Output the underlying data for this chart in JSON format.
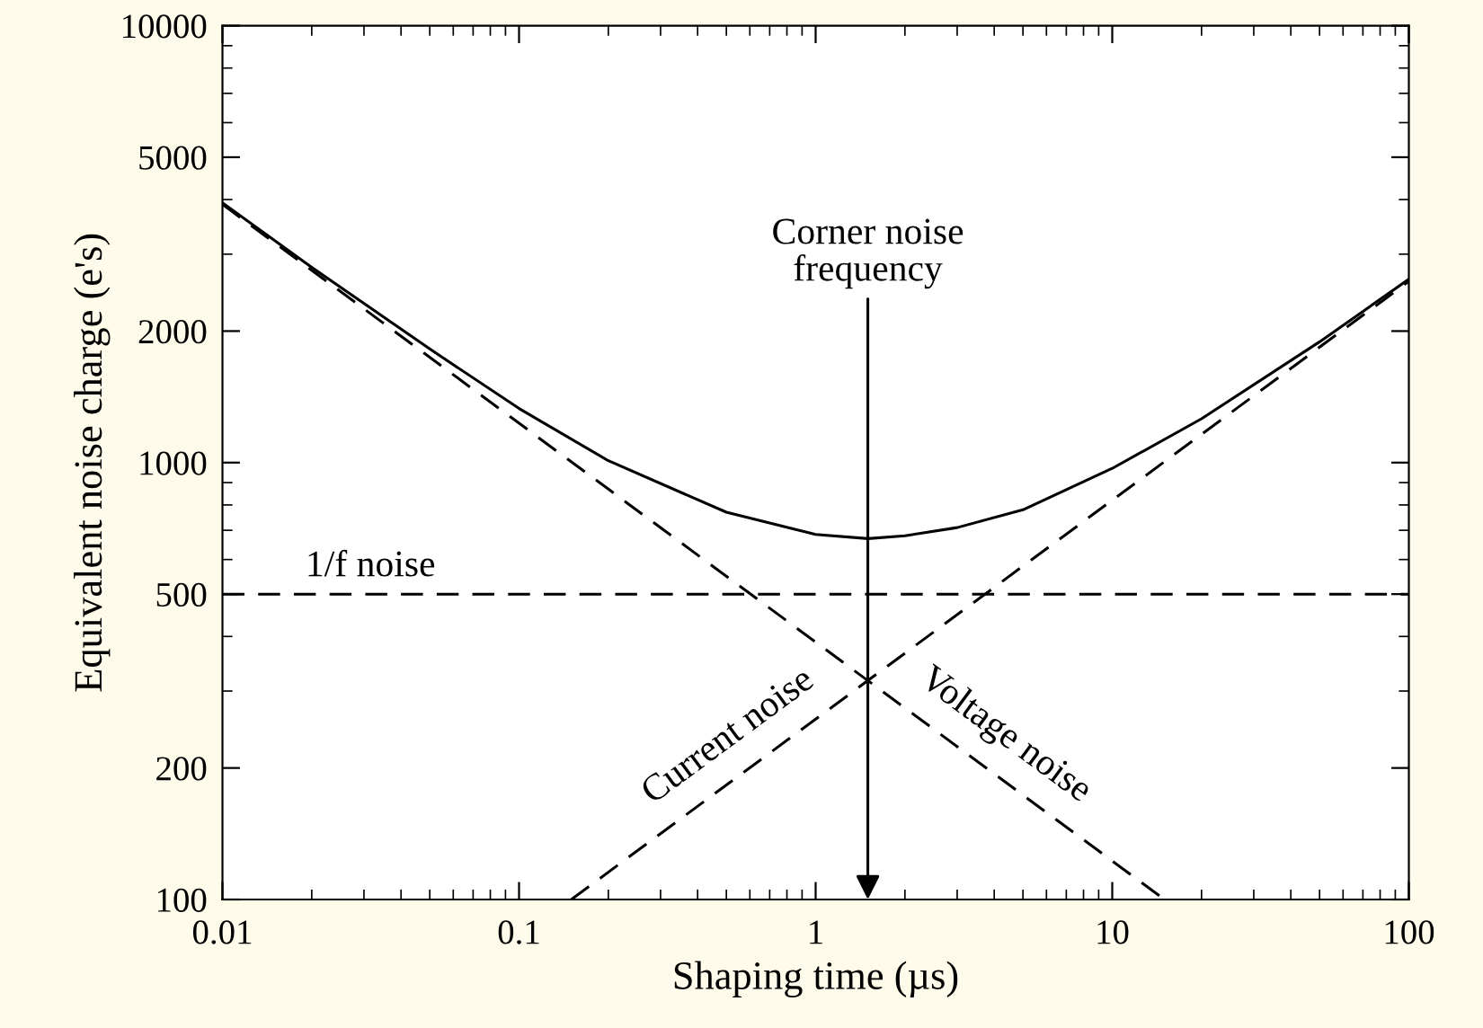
{
  "chart_data": {
    "type": "line",
    "xlabel": "Shaping time (µs)",
    "ylabel": "Equivalent noise charge (e's)",
    "log": "xy",
    "xlim": [
      0.01,
      100
    ],
    "ylim": [
      100,
      10000
    ],
    "xticks": [
      0.01,
      0.1,
      1,
      10,
      100
    ],
    "yticks": [
      100,
      200,
      500,
      1000,
      2000,
      5000,
      10000
    ],
    "grid": false,
    "legend": false,
    "marker": "none",
    "series": [
      {
        "color": "#000000",
        "line_style": "solid",
        "x": [
          0.01,
          0.02,
          0.05,
          0.1,
          0.2,
          0.5,
          1,
          1.5,
          2,
          3,
          5,
          10,
          20,
          50,
          100
        ],
        "values": [
          3930,
          2800,
          1820,
          1330,
          1010,
          770,
          685,
          670,
          680,
          710,
          780,
          970,
          1260,
          1890,
          2630
        ]
      },
      {
        "name": "Current noise",
        "color": "#000000",
        "line_style": "dashed",
        "x": [
          0.15,
          100
        ],
        "values": [
          100,
          2600
        ]
      },
      {
        "name": "Voltage noise",
        "color": "#000000",
        "line_style": "dashed",
        "x": [
          0.01,
          15
        ],
        "values": [
          3900,
          100
        ]
      }
    ],
    "ref_lines": [
      {
        "axis": "y",
        "value": 500,
        "label": "1/f noise",
        "color": "#000000",
        "line_style": "dashed"
      }
    ],
    "annotations": [
      "Corner noise\nfrequency"
    ]
  }
}
